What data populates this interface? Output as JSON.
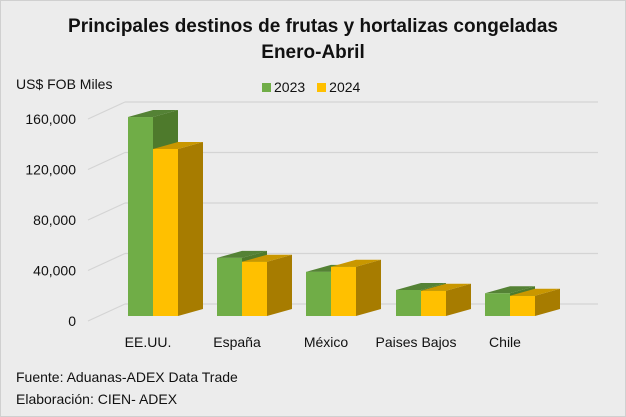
{
  "chart_data": {
    "type": "bar",
    "title": "Principales destinos de frutas y hortalizas congeladas",
    "subtitle": "Enero-Abril",
    "xlabel": "",
    "ylabel": "US$ FOB Miles",
    "categories": [
      "EE.UU.",
      "España",
      "México",
      "Paises Bajos",
      "Chile"
    ],
    "series": [
      {
        "name": "2023",
        "values": [
          157600,
          46000,
          35000,
          20600,
          18000
        ],
        "color": "#70ad47",
        "side_color": "#4e7a2c",
        "top_color": "#548235"
      },
      {
        "name": "2024",
        "values": [
          132300,
          43000,
          39000,
          20000,
          16000
        ],
        "color": "#ffc000",
        "side_color": "#a77c00",
        "top_color": "#c99700"
      }
    ],
    "ylim": [
      0,
      160000
    ],
    "yticks": [
      0,
      40000,
      80000,
      120000,
      160000
    ],
    "ytick_labels": [
      "0",
      "40,000",
      "80,000",
      "120,000",
      "160,000"
    ],
    "grid": true,
    "legend": "top-center",
    "style": "3d-clustered-column"
  },
  "footer": {
    "source": "Fuente: Aduanas-ADEX Data Trade",
    "elaboration": "Elaboración: CIEN- ADEX"
  }
}
